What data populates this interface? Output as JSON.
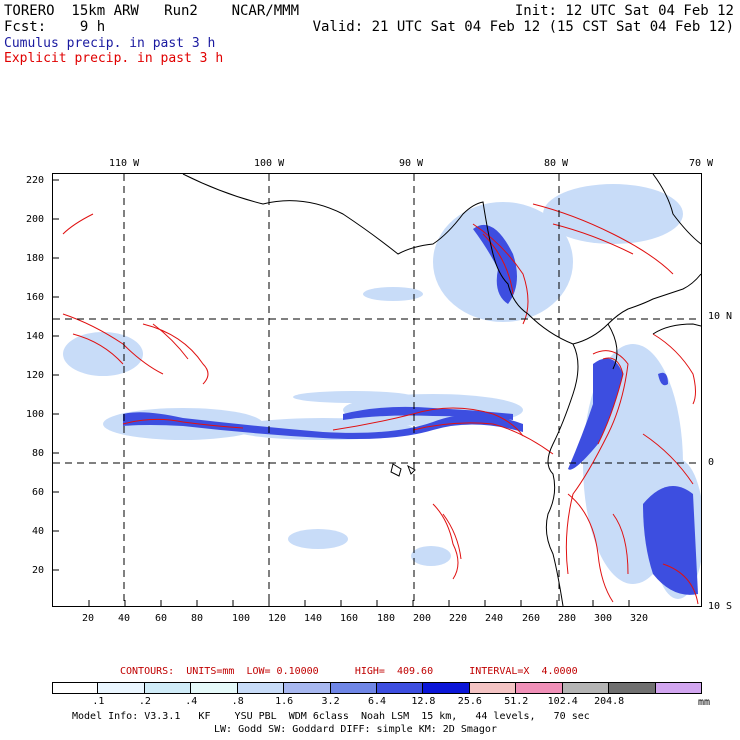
{
  "header": {
    "line1_left": "TORERO  15km ARW   Run2    NCAR/MMM",
    "line1_right": "Init: 12 UTC Sat 04 Feb 12",
    "line2_left": "Fcst:    9 h",
    "line2_right": "Valid: 21 UTC Sat 04 Feb 12 (15 CST Sat 04 Feb 12)",
    "cumulus_label": "Cumulus precip. in past 3 h",
    "explicit_label": "Explicit precip. in past 3 h"
  },
  "colors": {
    "cumulus_text": "#1a1aa0",
    "explicit_text": "#e00000",
    "contour": "#e01010",
    "coast": "#000000"
  },
  "map": {
    "top_lon_labels": [
      "110 W",
      "100 W",
      "90 W",
      "80 W",
      "70 W"
    ],
    "right_lat_labels": [
      "10 N",
      "0",
      "10 S"
    ],
    "y_ticks": [
      "220",
      "200",
      "180",
      "160",
      "140",
      "120",
      "100",
      "80",
      "60",
      "40",
      "20"
    ],
    "x_ticks": [
      "20",
      "40",
      "60",
      "80",
      "100",
      "120",
      "140",
      "160",
      "180",
      "200",
      "220",
      "240",
      "260",
      "280",
      "300",
      "320"
    ]
  },
  "contours_line": {
    "contours": "CONTOURS:",
    "units": "UNITS=mm",
    "low": "LOW= 0.10000",
    "high": "HIGH=  409.60",
    "interval": "INTERVAL=X  4.0000"
  },
  "legend": {
    "labels": [
      ".1",
      ".2",
      ".4",
      ".8",
      "1.6",
      "3.2",
      "6.4",
      "12.8",
      "25.6",
      "51.2",
      "102.4",
      "204.8"
    ],
    "unit": "mm",
    "colors": [
      "#ffffff",
      "#eaf6ff",
      "#d0ecf8",
      "#e6fafa",
      "#c8dcf8",
      "#a8b8f0",
      "#6f86e6",
      "#3d4ee0",
      "#0b16d8",
      "#f4c4c4",
      "#f090b8",
      "#b4b4b4",
      "#707070",
      "#d2a6f0"
    ]
  },
  "footer": {
    "line1": "Model Info: V3.3.1   KF    YSU PBL  WDM 6class  Noah LSM  15 km,   44 levels,   70 sec",
    "line2": "LW: Godd SW: Goddard DIFF: simple KM: 2D Smagor"
  }
}
